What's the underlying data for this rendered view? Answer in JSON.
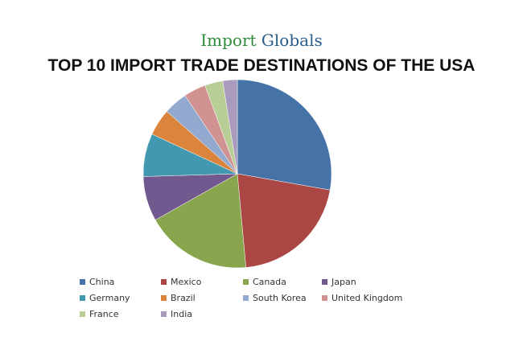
{
  "logo": {
    "part1": "Import ",
    "part2": "Globals"
  },
  "chart_data": {
    "type": "pie",
    "title": "TOP 10 IMPORT TRADE DESTINATIONS OF THE USA",
    "legend_position": "bottom",
    "categories": [
      "China",
      "Mexico",
      "Canada",
      "Japan",
      "Germany",
      "Brazil",
      "South Korea",
      "United Kingdom",
      "France",
      "India"
    ],
    "values": [
      27.8,
      20.8,
      18.3,
      7.7,
      7.4,
      4.6,
      4.1,
      3.8,
      3.1,
      2.5
    ],
    "colors": [
      "#4572A7",
      "#AA4643",
      "#89A54E",
      "#71588F",
      "#4198AF",
      "#DB843D",
      "#93A9CF",
      "#D19392",
      "#B9CD96",
      "#A99BBD"
    ]
  }
}
